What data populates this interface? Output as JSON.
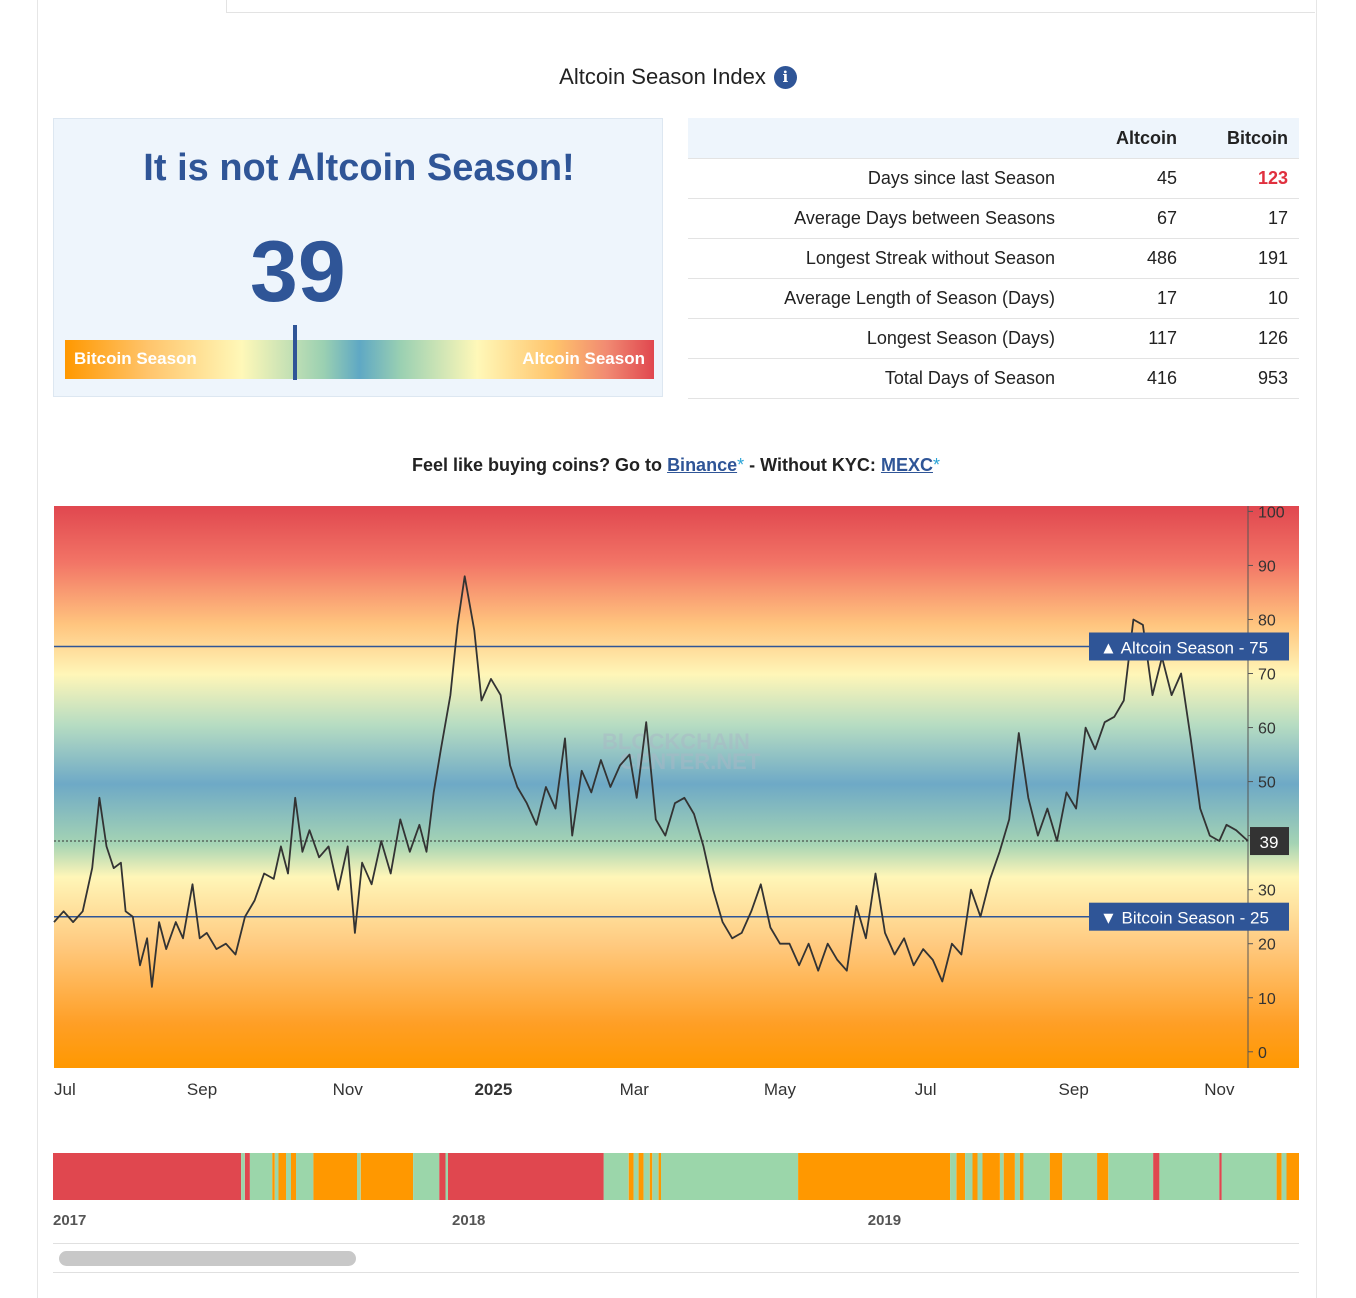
{
  "title": "Altcoin Season Index",
  "status": {
    "headline": "It is not Altcoin Season!",
    "index_value": "39",
    "index_number": 39,
    "gauge_left_label": "Bitcoin Season",
    "gauge_right_label": "Altcoin Season"
  },
  "stats_table": {
    "columns": [
      "",
      "Altcoin",
      "Bitcoin"
    ],
    "rows": [
      {
        "label": "Days since last Season",
        "altcoin": "45",
        "bitcoin": "123"
      },
      {
        "label": "Average Days between Seasons",
        "altcoin": "67",
        "bitcoin": "17"
      },
      {
        "label": "Longest Streak without Season",
        "altcoin": "486",
        "bitcoin": "191"
      },
      {
        "label": "Average Length of Season (Days)",
        "altcoin": "17",
        "bitcoin": "10"
      },
      {
        "label": "Longest Season (Days)",
        "altcoin": "117",
        "bitcoin": "126"
      },
      {
        "label": "Total Days of Season",
        "altcoin": "416",
        "bitcoin": "953"
      }
    ],
    "highlight_color": "#e0303e"
  },
  "promo": {
    "prefix": "Feel like buying coins? Go to",
    "link1": "Binance",
    "star": "*",
    "middle": "- Without KYC:",
    "link2": "MEXC"
  },
  "colors": {
    "accent": "#2f5597",
    "altcoin_red": "#e0474f",
    "bitcoin_orange": "#ff9800",
    "neutral_green": "#9bd6aa"
  },
  "chart_data": [
    {
      "type": "line",
      "x_range": [
        "2024-07-01",
        "2025-11-13"
      ],
      "x_tick_labels": [
        "Jul",
        "Sep",
        "Nov",
        "2025",
        "Mar",
        "May",
        "Jul",
        "Sep",
        "Nov"
      ],
      "bold_tick": "2025",
      "ylim": [
        -3,
        101
      ],
      "y_ticks": [
        0,
        10,
        20,
        30,
        40,
        50,
        60,
        70,
        80,
        90,
        100
      ],
      "y_tick_labels": [
        "0",
        "10",
        "20",
        "30",
        "",
        "50",
        "60",
        "70",
        "80",
        "90",
        "100"
      ],
      "series": [
        {
          "points": [
            [
              "2024-07-01",
              24
            ],
            [
              "2024-07-05",
              26
            ],
            [
              "2024-07-09",
              24
            ],
            [
              "2024-07-13",
              26
            ],
            [
              "2024-07-17",
              34
            ],
            [
              "2024-07-20",
              47
            ],
            [
              "2024-07-23",
              38
            ],
            [
              "2024-07-26",
              34
            ],
            [
              "2024-07-29",
              35
            ],
            [
              "2024-07-31",
              26
            ],
            [
              "2024-08-03",
              25
            ],
            [
              "2024-08-06",
              16
            ],
            [
              "2024-08-09",
              21
            ],
            [
              "2024-08-11",
              12
            ],
            [
              "2024-08-14",
              24
            ],
            [
              "2024-08-17",
              19
            ],
            [
              "2024-08-21",
              24
            ],
            [
              "2024-08-24",
              21
            ],
            [
              "2024-08-28",
              31
            ],
            [
              "2024-08-31",
              21
            ],
            [
              "2024-09-03",
              22
            ],
            [
              "2024-09-07",
              19
            ],
            [
              "2024-09-11",
              20
            ],
            [
              "2024-09-15",
              18
            ],
            [
              "2024-09-19",
              25
            ],
            [
              "2024-09-23",
              28
            ],
            [
              "2024-09-27",
              33
            ],
            [
              "2024-10-01",
              32
            ],
            [
              "2024-10-04",
              38
            ],
            [
              "2024-10-07",
              33
            ],
            [
              "2024-10-10",
              47
            ],
            [
              "2024-10-13",
              37
            ],
            [
              "2024-10-16",
              41
            ],
            [
              "2024-10-20",
              36
            ],
            [
              "2024-10-24",
              38
            ],
            [
              "2024-10-28",
              30
            ],
            [
              "2024-11-01",
              38
            ],
            [
              "2024-11-04",
              22
            ],
            [
              "2024-11-07",
              35
            ],
            [
              "2024-11-11",
              31
            ],
            [
              "2024-11-15",
              39
            ],
            [
              "2024-11-19",
              33
            ],
            [
              "2024-11-23",
              43
            ],
            [
              "2024-11-27",
              37
            ],
            [
              "2024-12-01",
              42
            ],
            [
              "2024-12-04",
              37
            ],
            [
              "2024-12-07",
              48
            ],
            [
              "2024-12-10",
              56
            ],
            [
              "2024-12-14",
              66
            ],
            [
              "2024-12-17",
              79
            ],
            [
              "2024-12-20",
              88
            ],
            [
              "2024-12-24",
              78
            ],
            [
              "2024-12-27",
              65
            ],
            [
              "2024-12-31",
              69
            ],
            [
              "2025-01-04",
              66
            ],
            [
              "2025-01-08",
              53
            ],
            [
              "2025-01-11",
              49
            ],
            [
              "2025-01-15",
              46
            ],
            [
              "2025-01-19",
              42
            ],
            [
              "2025-01-23",
              49
            ],
            [
              "2025-01-27",
              45
            ],
            [
              "2025-01-31",
              58
            ],
            [
              "2025-02-03",
              40
            ],
            [
              "2025-02-07",
              52
            ],
            [
              "2025-02-11",
              48
            ],
            [
              "2025-02-15",
              54
            ],
            [
              "2025-02-19",
              49
            ],
            [
              "2025-02-23",
              53
            ],
            [
              "2025-02-27",
              55
            ],
            [
              "2025-03-02",
              47
            ],
            [
              "2025-03-06",
              61
            ],
            [
              "2025-03-10",
              43
            ],
            [
              "2025-03-14",
              40
            ],
            [
              "2025-03-18",
              46
            ],
            [
              "2025-03-22",
              47
            ],
            [
              "2025-03-26",
              44
            ],
            [
              "2025-03-30",
              38
            ],
            [
              "2025-04-03",
              30
            ],
            [
              "2025-04-07",
              24
            ],
            [
              "2025-04-11",
              21
            ],
            [
              "2025-04-15",
              22
            ],
            [
              "2025-04-19",
              26
            ],
            [
              "2025-04-23",
              31
            ],
            [
              "2025-04-27",
              23
            ],
            [
              "2025-05-01",
              20
            ],
            [
              "2025-05-05",
              20
            ],
            [
              "2025-05-09",
              16
            ],
            [
              "2025-05-13",
              20
            ],
            [
              "2025-05-17",
              15
            ],
            [
              "2025-05-21",
              20
            ],
            [
              "2025-05-25",
              17
            ],
            [
              "2025-05-29",
              15
            ],
            [
              "2025-06-02",
              27
            ],
            [
              "2025-06-06",
              21
            ],
            [
              "2025-06-10",
              33
            ],
            [
              "2025-06-14",
              22
            ],
            [
              "2025-06-18",
              18
            ],
            [
              "2025-06-22",
              21
            ],
            [
              "2025-06-26",
              16
            ],
            [
              "2025-06-30",
              19
            ],
            [
              "2025-07-04",
              17
            ],
            [
              "2025-07-08",
              13
            ],
            [
              "2025-07-12",
              20
            ],
            [
              "2025-07-16",
              18
            ],
            [
              "2025-07-20",
              30
            ],
            [
              "2025-07-24",
              25
            ],
            [
              "2025-07-28",
              32
            ],
            [
              "2025-08-01",
              37
            ],
            [
              "2025-08-05",
              43
            ],
            [
              "2025-08-09",
              59
            ],
            [
              "2025-08-13",
              47
            ],
            [
              "2025-08-17",
              40
            ],
            [
              "2025-08-21",
              45
            ],
            [
              "2025-08-25",
              39
            ],
            [
              "2025-08-29",
              48
            ],
            [
              "2025-09-02",
              45
            ],
            [
              "2025-09-06",
              60
            ],
            [
              "2025-09-10",
              56
            ],
            [
              "2025-09-14",
              61
            ],
            [
              "2025-09-18",
              62
            ],
            [
              "2025-09-22",
              65
            ],
            [
              "2025-09-26",
              80
            ],
            [
              "2025-09-30",
              79
            ],
            [
              "2025-10-04",
              66
            ],
            [
              "2025-10-08",
              73
            ],
            [
              "2025-10-12",
              66
            ],
            [
              "2025-10-16",
              70
            ],
            [
              "2025-10-20",
              58
            ],
            [
              "2025-10-24",
              45
            ],
            [
              "2025-10-28",
              40
            ],
            [
              "2025-11-01",
              39
            ],
            [
              "2025-11-04",
              42
            ],
            [
              "2025-11-08",
              41
            ],
            [
              "2025-11-13",
              39
            ]
          ]
        }
      ],
      "threshold_lines": [
        {
          "label": "Altcoin Season",
          "value": 75,
          "marker": "▲",
          "value_label": "75"
        },
        {
          "label": "Bitcoin Season",
          "value": 25,
          "marker": "▼",
          "value_label": "25"
        }
      ],
      "current_value_label": "39",
      "current_value": 39,
      "watermark": [
        "BLOCKCHAIN",
        "CENTER.NET"
      ]
    },
    {
      "type": "area",
      "x_range": [
        "2017-01-01",
        "2019-12-31"
      ],
      "x_tick_labels": [
        "2017",
        "2018",
        "2019"
      ],
      "state_colors": {
        "altcoin": "#e0474f",
        "bitcoin": "#ff9800",
        "neutral": "#9bd6aa"
      },
      "segments": [
        [
          "altcoin",
          0.0,
          0.151
        ],
        [
          "neutral",
          0.151,
          0.154
        ],
        [
          "altcoin",
          0.154,
          0.158
        ],
        [
          "neutral",
          0.158,
          0.176
        ],
        [
          "bitcoin",
          0.176,
          0.178
        ],
        [
          "neutral",
          0.178,
          0.181
        ],
        [
          "bitcoin",
          0.181,
          0.187
        ],
        [
          "neutral",
          0.187,
          0.191
        ],
        [
          "bitcoin",
          0.191,
          0.195
        ],
        [
          "neutral",
          0.195,
          0.209
        ],
        [
          "bitcoin",
          0.209,
          0.244
        ],
        [
          "neutral",
          0.244,
          0.247
        ],
        [
          "bitcoin",
          0.247,
          0.289
        ],
        [
          "neutral",
          0.289,
          0.31
        ],
        [
          "altcoin",
          0.31,
          0.315
        ],
        [
          "neutral",
          0.315,
          0.317
        ],
        [
          "altcoin",
          0.317,
          0.442
        ],
        [
          "neutral",
          0.442,
          0.462
        ],
        [
          "bitcoin",
          0.462,
          0.466
        ],
        [
          "neutral",
          0.466,
          0.47
        ],
        [
          "bitcoin",
          0.47,
          0.474
        ],
        [
          "neutral",
          0.474,
          0.479
        ],
        [
          "bitcoin",
          0.479,
          0.481
        ],
        [
          "neutral",
          0.481,
          0.486
        ],
        [
          "bitcoin",
          0.486,
          0.488
        ],
        [
          "neutral",
          0.488,
          0.598
        ],
        [
          "bitcoin",
          0.598,
          0.72
        ],
        [
          "neutral",
          0.72,
          0.725
        ],
        [
          "bitcoin",
          0.725,
          0.732
        ],
        [
          "neutral",
          0.732,
          0.738
        ],
        [
          "bitcoin",
          0.738,
          0.742
        ],
        [
          "neutral",
          0.742,
          0.746
        ],
        [
          "bitcoin",
          0.746,
          0.76
        ],
        [
          "neutral",
          0.76,
          0.763
        ],
        [
          "bitcoin",
          0.763,
          0.772
        ],
        [
          "neutral",
          0.772,
          0.776
        ],
        [
          "bitcoin",
          0.776,
          0.779
        ],
        [
          "neutral",
          0.779,
          0.8
        ],
        [
          "bitcoin",
          0.8,
          0.81
        ],
        [
          "neutral",
          0.81,
          0.838
        ],
        [
          "bitcoin",
          0.838,
          0.847
        ],
        [
          "neutral",
          0.847,
          0.883
        ],
        [
          "altcoin",
          0.883,
          0.888
        ],
        [
          "neutral",
          0.888,
          0.936
        ],
        [
          "altcoin",
          0.936,
          0.938
        ],
        [
          "neutral",
          0.938,
          0.982
        ],
        [
          "bitcoin",
          0.982,
          0.986
        ],
        [
          "neutral",
          0.986,
          0.99
        ],
        [
          "bitcoin",
          0.99,
          1.0
        ]
      ]
    }
  ],
  "scrollbar_position": 0.0
}
